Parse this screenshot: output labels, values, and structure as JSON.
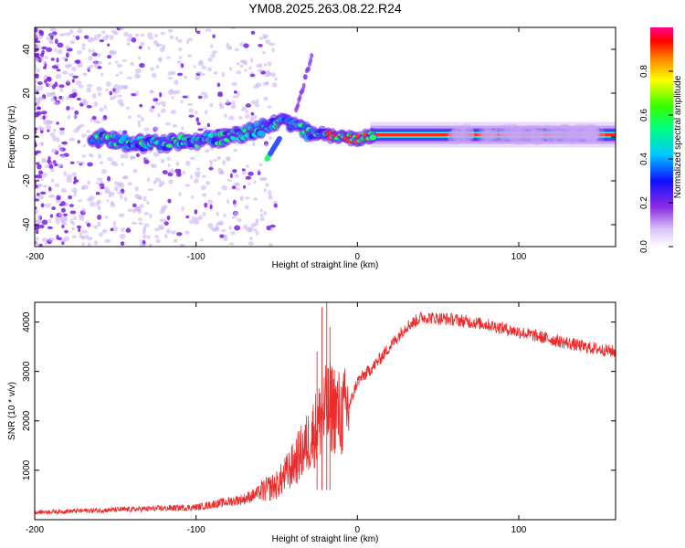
{
  "title": "YM08.2025.263.08.22.R24",
  "colors": {
    "snr_line": "#ee2a2a",
    "axis": "#000000"
  },
  "chart_data": [
    {
      "type": "heatmap",
      "name": "spectrogram",
      "xlabel": "Height of straight line (km)",
      "ylabel": "Frequency (Hz)",
      "xlim": [
        -200,
        160
      ],
      "ylim": [
        -50,
        50
      ],
      "xticks": [
        -200,
        -100,
        0,
        100
      ],
      "xtick_labels": [
        "-200",
        "-100",
        "0",
        "100"
      ],
      "yticks": [
        -40,
        -20,
        0,
        20,
        40
      ],
      "ytick_labels": [
        "-40",
        "-20",
        "0",
        "20",
        "40"
      ],
      "colorbar": {
        "label": "Normalized spectral amplitude",
        "range": [
          0,
          1
        ],
        "ticks": [
          0.0,
          0.2,
          0.4,
          0.6,
          0.8
        ],
        "tick_labels": [
          "0.0",
          "0.2",
          "0.4",
          "0.6",
          "0.8"
        ]
      },
      "ridge": {
        "x": [
          -160,
          -140,
          -120,
          -100,
          -80,
          -60,
          -45,
          -30,
          -20,
          -10,
          0,
          10,
          40,
          80,
          120,
          160
        ],
        "y": [
          0,
          -3,
          -3,
          -2,
          0,
          4,
          8,
          2,
          1,
          0,
          -1,
          1,
          1,
          1,
          1,
          0
        ]
      }
    },
    {
      "type": "line",
      "name": "snr",
      "xlabel": "Height of straight line (km)",
      "ylabel": "SNR (10 * v/v)",
      "xlim": [
        -200,
        160
      ],
      "ylim": [
        0,
        4400
      ],
      "xticks": [
        -200,
        -100,
        0,
        100
      ],
      "xtick_labels": [
        "-200",
        "-100",
        "0",
        "100"
      ],
      "yticks": [
        1000,
        2000,
        3000,
        4000
      ],
      "ytick_labels": [
        "1000",
        "2000",
        "3000",
        "4000"
      ],
      "envelope": {
        "x": [
          -200,
          -150,
          -100,
          -70,
          -50,
          -40,
          -30,
          -20,
          -15,
          -10,
          -5,
          0,
          10,
          20,
          30,
          40,
          60,
          80,
          100,
          120,
          140,
          160
        ],
        "y": [
          150,
          200,
          250,
          420,
          700,
          1100,
          1600,
          2200,
          2300,
          2100,
          2300,
          2800,
          3100,
          3500,
          3900,
          4100,
          4050,
          3950,
          3800,
          3650,
          3500,
          3400
        ]
      }
    }
  ]
}
